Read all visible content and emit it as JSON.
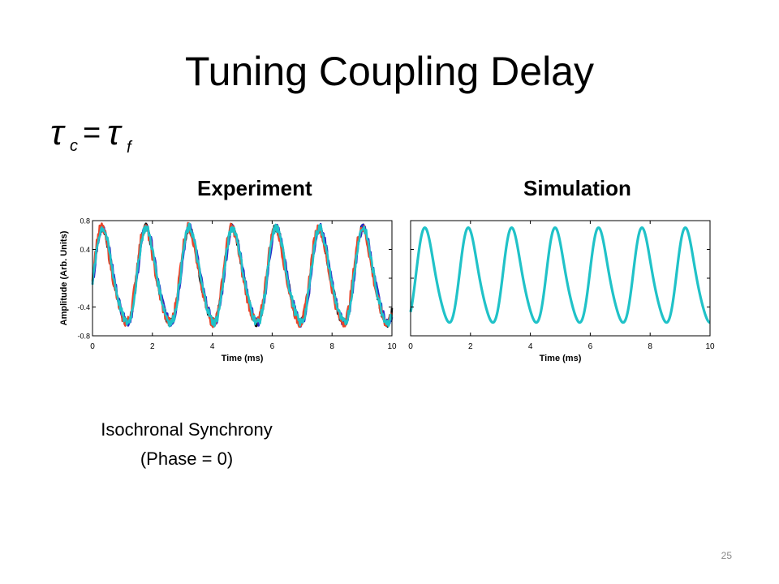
{
  "slide": {
    "title": "Tuning Coupling Delay",
    "formula_text": "τc = τf",
    "caption_line1": "Isochronal Synchrony",
    "caption_line2": "(Phase = 0)",
    "page_number": "25"
  },
  "chart_data": [
    {
      "type": "line",
      "title": "Experiment",
      "xlabel": "Time (ms)",
      "ylabel": "Amplitude (Arb. Units)",
      "xlim": [
        0,
        10
      ],
      "ylim": [
        -0.8,
        0.8
      ],
      "xticks": [
        0,
        2,
        4,
        6,
        8,
        10
      ],
      "yticks": [
        -0.8,
        -0.4,
        0.4,
        0.8
      ],
      "period_ms": 1.45,
      "amplitude": 0.7,
      "grid": false,
      "legend": "none",
      "series": [
        {
          "color": "#111111",
          "phase_ms": 0.0,
          "noise": 0.06
        },
        {
          "color": "#2b2bc8",
          "phase_ms": 0.02,
          "noise": 0.06
        },
        {
          "color": "#e8452a",
          "phase_ms": -0.02,
          "noise": 0.07
        },
        {
          "color": "#20c2c8",
          "phase_ms": 0.01,
          "noise": 0.06
        }
      ]
    },
    {
      "type": "line",
      "title": "Simulation",
      "xlabel": "Time (ms)",
      "ylabel": "",
      "xlim": [
        0,
        10
      ],
      "ylim": [
        -0.8,
        0.8
      ],
      "xticks": [
        0,
        2,
        4,
        6,
        8,
        10
      ],
      "yticks": [],
      "period_ms": 1.45,
      "amplitude": 0.7,
      "grid": false,
      "legend": "none",
      "series": [
        {
          "color": "#20c2c8",
          "phase_ms": 0.15,
          "noise": 0
        }
      ]
    }
  ]
}
